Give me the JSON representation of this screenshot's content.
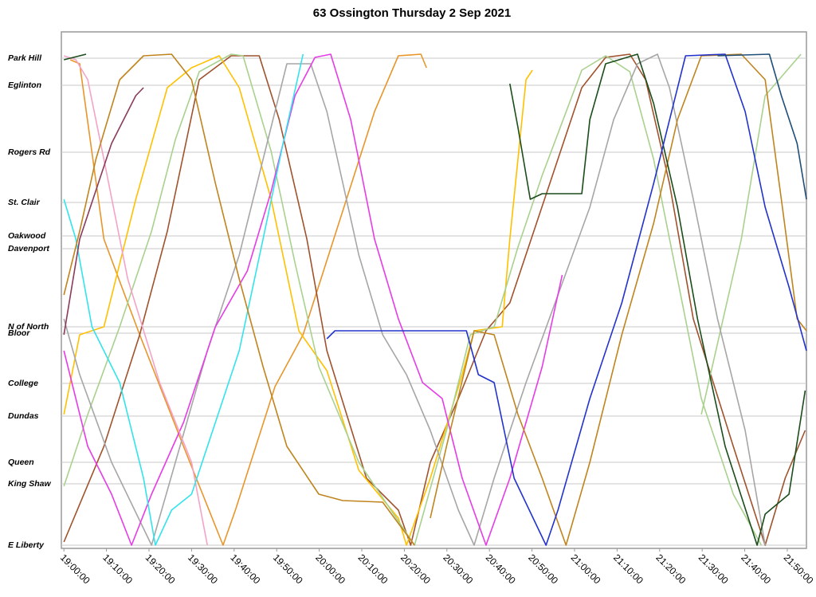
{
  "chart_data": {
    "type": "line",
    "title": "63 Ossington Thursday 2 Sep 2021",
    "xlim": [
      1139.4,
      1314.5
    ],
    "xticks": [
      {
        "value": 1140,
        "label": "19:00:00"
      },
      {
        "value": 1150,
        "label": "19:10:00"
      },
      {
        "value": 1160,
        "label": "19:20:00"
      },
      {
        "value": 1170,
        "label": "19:30:00"
      },
      {
        "value": 1180,
        "label": "19:40:00"
      },
      {
        "value": 1190,
        "label": "19:50:00"
      },
      {
        "value": 1200,
        "label": "20:00:00"
      },
      {
        "value": 1210,
        "label": "20:10:00"
      },
      {
        "value": 1220,
        "label": "20:20:00"
      },
      {
        "value": 1230,
        "label": "20:30:00"
      },
      {
        "value": 1240,
        "label": "20:40:00"
      },
      {
        "value": 1250,
        "label": "20:50:00"
      },
      {
        "value": 1260,
        "label": "21:00:00"
      },
      {
        "value": 1270,
        "label": "21:10:00"
      },
      {
        "value": 1280,
        "label": "21:20:00"
      },
      {
        "value": 1290,
        "label": "21:30:00"
      },
      {
        "value": 1300,
        "label": "21:40:00"
      },
      {
        "value": 1310,
        "label": "21:50:00"
      }
    ],
    "ylim": [
      -0.04,
      6.44
    ],
    "yticks": [
      {
        "value": 6.11,
        "label": "Park Hill"
      },
      {
        "value": 5.77,
        "label": "Eglinton"
      },
      {
        "value": 4.93,
        "label": "Rogers Rd"
      },
      {
        "value": 4.3,
        "label": "St. Clair"
      },
      {
        "value": 3.88,
        "label": "Oakwood"
      },
      {
        "value": 3.72,
        "label": "Davenport"
      },
      {
        "value": 2.74,
        "label": "N of North"
      },
      {
        "value": 2.66,
        "label": "Bloor"
      },
      {
        "value": 2.03,
        "label": "College"
      },
      {
        "value": 1.62,
        "label": "Dundas"
      },
      {
        "value": 1.04,
        "label": "Queen"
      },
      {
        "value": 0.77,
        "label": "King Shaw"
      },
      {
        "value": 0,
        "label": "E Liberty"
      }
    ],
    "grid": true,
    "series": [
      {
        "color": "#e8952a",
        "x": [
          1141.5,
          1143.7,
          1149.4,
          1157.8,
          1168.1,
          1177.4,
          1180.3,
          1189.6,
          1196.2,
          1205.5,
          1213,
          1218.6,
          1223.9,
          1225.2
        ],
        "values": [
          6.09,
          6.04,
          3.84,
          2.64,
          1.24,
          0,
          0.44,
          1.99,
          2.64,
          4.19,
          5.44,
          6.14,
          6.16,
          5.99
        ]
      },
      {
        "color": "#a0522d",
        "x": [
          1140,
          1149.4,
          1157.8,
          1164.3,
          1171.8,
          1179.3,
          1185.9,
          1190.6,
          1197.1,
          1201.8,
          1211.1,
          1218.6,
          1221.5,
          1226.1,
          1232.7,
          1239.2,
          1244.8,
          1254.2,
          1261.7,
          1267.3,
          1273,
          1276.7,
          1282.3,
          1287.9,
          1297.3,
          1304.8,
          1309.5,
          1314.2
        ],
        "values": [
          0.04,
          1.24,
          2.64,
          3.94,
          5.84,
          6.14,
          6.14,
          5.34,
          3.84,
          2.44,
          0.84,
          0.44,
          0,
          1.04,
          1.84,
          2.69,
          3.04,
          4.54,
          5.74,
          6.12,
          6.16,
          5.84,
          4.54,
          2.84,
          1.24,
          0,
          0.84,
          1.44
        ]
      },
      {
        "color": "#ffc000",
        "x": [
          1140,
          1143.7,
          1149.4,
          1156.9,
          1164.3,
          1170,
          1176.5,
          1181.2,
          1188.7,
          1195.2,
          1201.8,
          1209.3,
          1218.6,
          1220.5,
          1226.1,
          1233.6,
          1236.4,
          1243,
          1244.8,
          1248.6,
          1250.1
        ],
        "values": [
          1.64,
          2.64,
          2.74,
          4.34,
          5.74,
          5.99,
          6.14,
          5.74,
          4.34,
          2.69,
          2.19,
          0.94,
          0.34,
          0,
          0.84,
          2.14,
          2.69,
          2.74,
          3.84,
          5.84,
          5.96
        ]
      },
      {
        "color": "#a9d18e",
        "x": [
          1140,
          1145.6,
          1153.1,
          1160.6,
          1166.2,
          1171.8,
          1179.3,
          1182.1,
          1188.7,
          1194.3,
          1199.9,
          1209.3,
          1222.4,
          1229.9,
          1235.5,
          1241.1,
          1246.7,
          1252.4,
          1261.7,
          1267.3,
          1273,
          1278.6,
          1284.2,
          1289.8,
          1297.3,
          1303.9
        ],
        "values": [
          0.74,
          1.64,
          2.74,
          3.94,
          5.09,
          5.94,
          6.16,
          6.14,
          4.94,
          3.54,
          2.24,
          1.04,
          0,
          1.44,
          2.64,
          2.74,
          3.74,
          4.64,
          5.96,
          6.14,
          5.94,
          4.84,
          3.34,
          1.84,
          0.64,
          0
        ]
      },
      {
        "color": "#a9d18e",
        "x": [
          1289.8,
          1299.2,
          1304.8,
          1313.2
        ],
        "values": [
          1.64,
          3.84,
          5.64,
          6.16
        ]
      },
      {
        "color": "#a6a6a6",
        "x": [
          1140,
          1143.7,
          1151.2,
          1160.6,
          1166.2,
          1173.7,
          1181.2,
          1186.8,
          1192.4,
          1198,
          1201.8,
          1209.3,
          1214.9,
          1220.5,
          1226.1,
          1232.7,
          1236.4,
          1241.1,
          1248.6,
          1256.1,
          1263.6,
          1269.2,
          1274.8,
          1279.5,
          1282.3,
          1287.9,
          1293.6,
          1300.1,
          1304.8
        ],
        "values": [
          2.84,
          2.14,
          1.04,
          0,
          1.04,
          2.44,
          3.64,
          4.84,
          6.04,
          6.04,
          5.44,
          3.64,
          2.64,
          2.14,
          1.44,
          0.44,
          0,
          0.84,
          2.04,
          3.14,
          4.24,
          5.34,
          6.04,
          6.16,
          5.74,
          4.34,
          2.84,
          1.44,
          0
        ]
      },
      {
        "color": "#e63ce6",
        "x": [
          1140,
          1145.6,
          1151.2,
          1155.9,
          1160.6,
          1168.1,
          1175.6,
          1183.1,
          1188.7,
          1194.3,
          1199,
          1202.7,
          1207.4,
          1213,
          1218.6,
          1224.3,
          1228.9,
          1233.6,
          1239.2,
          1244.8,
          1252.4,
          1257.1
        ],
        "values": [
          2.44,
          1.24,
          0.64,
          0,
          0.64,
          1.54,
          2.74,
          3.44,
          4.44,
          5.64,
          6.12,
          6.16,
          5.34,
          3.84,
          2.84,
          2.04,
          1.84,
          0.84,
          0,
          0.84,
          2.24,
          3.39
        ]
      },
      {
        "color": "#f4a3c7",
        "x": [
          1140,
          1142.8,
          1145.6,
          1149.4,
          1155,
          1162.5,
          1170,
          1173.7
        ],
        "values": [
          6.14,
          6.09,
          5.84,
          4.84,
          3.34,
          2.04,
          1.04,
          0
        ]
      },
      {
        "color": "#33e3ec",
        "x": [
          1140,
          1142.8,
          1146.6,
          1153.1,
          1158.7,
          1161.5,
          1165.3,
          1170,
          1175.6,
          1181.2,
          1186.8,
          1191.5,
          1196.2
        ],
        "values": [
          4.34,
          3.84,
          2.74,
          2.04,
          0.84,
          0,
          0.44,
          0.64,
          1.54,
          2.44,
          3.84,
          5.04,
          6.16
        ]
      },
      {
        "color": "#c0841e",
        "x": [
          1140,
          1143.7,
          1147.5,
          1153.1,
          1158.7,
          1165.3,
          1170,
          1175.6,
          1181.2,
          1186.8,
          1192.4,
          1199.9,
          1205.5,
          1214.9,
          1222.4
        ],
        "values": [
          3.14,
          3.94,
          4.84,
          5.84,
          6.14,
          6.16,
          5.84,
          4.54,
          3.34,
          2.24,
          1.24,
          0.64,
          0.56,
          0.54,
          0
        ]
      },
      {
        "color": "#c0841e",
        "x": [
          1226.1,
          1229.9,
          1236.4,
          1241.1,
          1246.7,
          1252.4,
          1258,
          1263.6,
          1271.1,
          1278.6,
          1284.2,
          1289.8,
          1299.2,
          1304.8,
          1308.6,
          1312.3,
          1314.5
        ],
        "values": [
          0.34,
          1.24,
          2.69,
          2.64,
          1.64,
          0.84,
          0,
          1.04,
          2.64,
          4.04,
          5.34,
          6.14,
          6.16,
          5.84,
          4.34,
          2.84,
          2.69
        ]
      },
      {
        "color": "#8b3a5a",
        "x": [
          1140,
          1143.7,
          1151.2,
          1156.9,
          1158.7
        ],
        "values": [
          2.64,
          3.84,
          5.04,
          5.64,
          5.74
        ]
      },
      {
        "color": "#1b4d1b",
        "x": [
          1244.8,
          1246.7,
          1249.6,
          1252.4,
          1261.7,
          1263.6,
          1267.3,
          1274.8,
          1278.6,
          1284.2,
          1288.9,
          1295.4,
          1302.9,
          1304.8,
          1310.4,
          1314.2
        ],
        "values": [
          5.79,
          5.24,
          4.34,
          4.41,
          4.41,
          5.34,
          6.04,
          6.16,
          5.54,
          4.24,
          2.84,
          1.24,
          0,
          0.39,
          0.64,
          1.94
        ]
      },
      {
        "color": "#1b4d1b",
        "x": [
          1140,
          1145.2
        ],
        "values": [
          6.09,
          6.16
        ]
      },
      {
        "color": "#2233cc",
        "x": [
          1201.8,
          1203.7,
          1234.6,
          1237.4,
          1241.1,
          1245.8,
          1253.3,
          1256.1,
          1263.6,
          1271.1,
          1278.6,
          1286.1,
          1295.4,
          1300.1,
          1304.8,
          1310.4,
          1314.5
        ],
        "values": [
          2.59,
          2.69,
          2.69,
          2.14,
          2.04,
          0.84,
          0,
          0.44,
          1.84,
          3.04,
          4.54,
          6.14,
          6.16,
          5.44,
          4.24,
          3.24,
          2.44
        ]
      },
      {
        "color": "#1f4e79",
        "x": [
          1293.6,
          1305.8,
          1308.6,
          1312.3,
          1314.5
        ],
        "values": [
          6.14,
          6.16,
          5.64,
          5.04,
          4.34
        ]
      }
    ]
  }
}
